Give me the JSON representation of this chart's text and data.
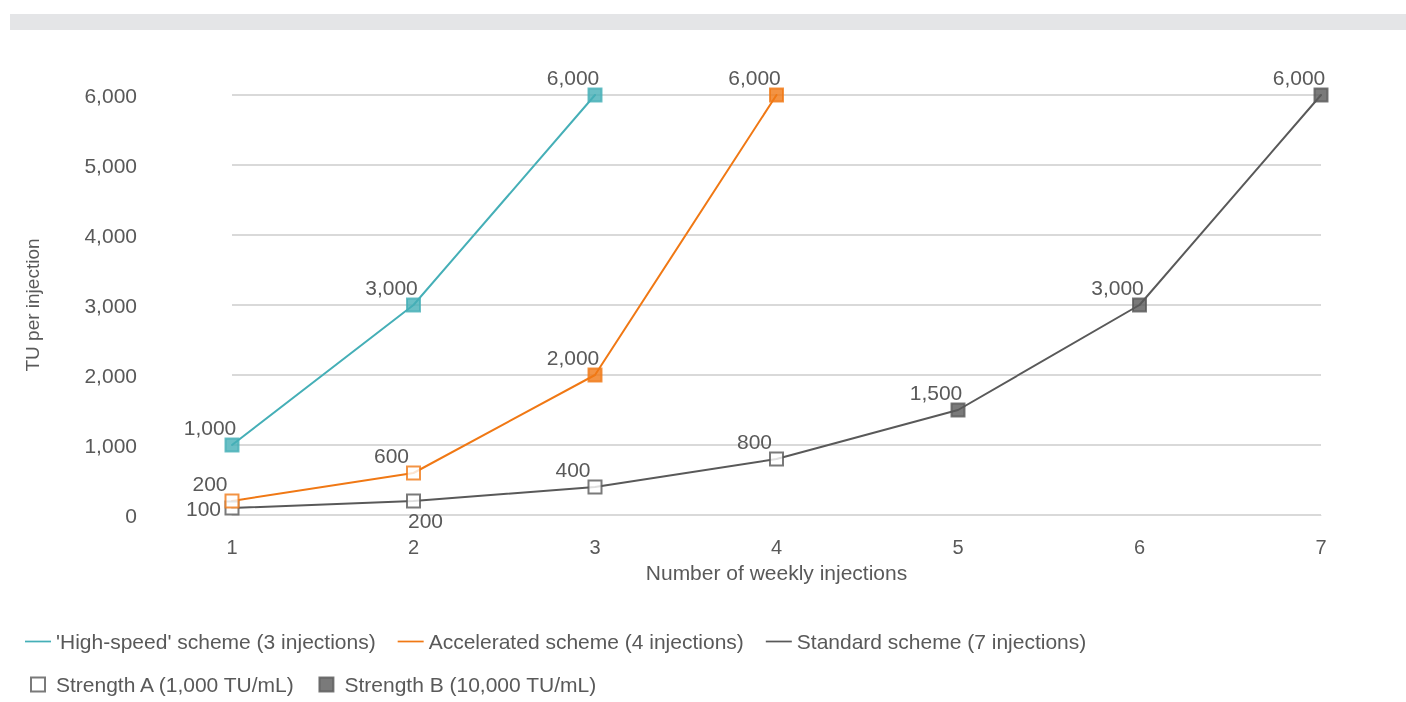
{
  "chart_data": {
    "type": "line",
    "xlabel": "Number of weekly injections",
    "ylabel": "TU per injection",
    "categories": [
      "1",
      "2",
      "3",
      "4",
      "5",
      "6",
      "7"
    ],
    "ylim": [
      0,
      6000
    ],
    "yticks": [
      {
        "value": 0,
        "label": "0"
      },
      {
        "value": 1000,
        "label": "1,000"
      },
      {
        "value": 2000,
        "label": "2,000"
      },
      {
        "value": 3000,
        "label": "3,000"
      },
      {
        "value": 4000,
        "label": "4,000"
      },
      {
        "value": 5000,
        "label": "5,000"
      },
      {
        "value": 6000,
        "label": "6,000"
      }
    ],
    "grid": "y",
    "legend": "bottom",
    "marker": "none",
    "series": [
      {
        "name": "'High-speed' scheme (3 injections)",
        "color": "#45afb7",
        "values": [
          1000,
          3000,
          6000,
          null,
          null,
          null,
          null
        ],
        "value_labels": [
          "1,000",
          "3,000",
          "6,000",
          null,
          null,
          null,
          null
        ]
      },
      {
        "name": "Accelerated scheme (4 injections)",
        "color": "#f07814",
        "values": [
          200,
          600,
          2000,
          6000,
          null,
          null,
          null
        ],
        "value_labels": [
          "200",
          "600",
          "2,000",
          "6,000",
          null,
          null,
          null
        ]
      },
      {
        "name": "Standard scheme (7 injections)",
        "color": "#595959",
        "values": [
          100,
          200,
          400,
          800,
          1500,
          3000,
          6000
        ],
        "value_labels": [
          "100",
          "200",
          "400",
          "800",
          "1,500",
          "3,000",
          "6,000"
        ]
      },
      {
        "name": "Strength A (1,000 TU/mL)",
        "type": "scatter",
        "marker": "square",
        "color": "#595959",
        "x": [
          "1",
          "2",
          "3",
          "4",
          "1",
          "2"
        ],
        "values": [
          100,
          200,
          400,
          800,
          200,
          600
        ],
        "colors": [
          "#ffffff",
          "#ffffff",
          "#ffffff",
          "#ffffff",
          "#ffffff",
          "#ffffff"
        ]
      },
      {
        "name": "Strength B (10,000 TU/mL)",
        "type": "scatter",
        "marker": "square",
        "color": "#595959",
        "x": [
          "5",
          "6",
          "7",
          "1",
          "2",
          "3",
          "3",
          "4"
        ],
        "values": [
          1500,
          3000,
          6000,
          1000,
          3000,
          6000,
          2000,
          6000
        ],
        "colors": [
          "#595959",
          "#595959",
          "#595959",
          "#45afb7",
          "#45afb7",
          "#45afb7",
          "#f07814",
          "#f07814"
        ]
      }
    ]
  }
}
